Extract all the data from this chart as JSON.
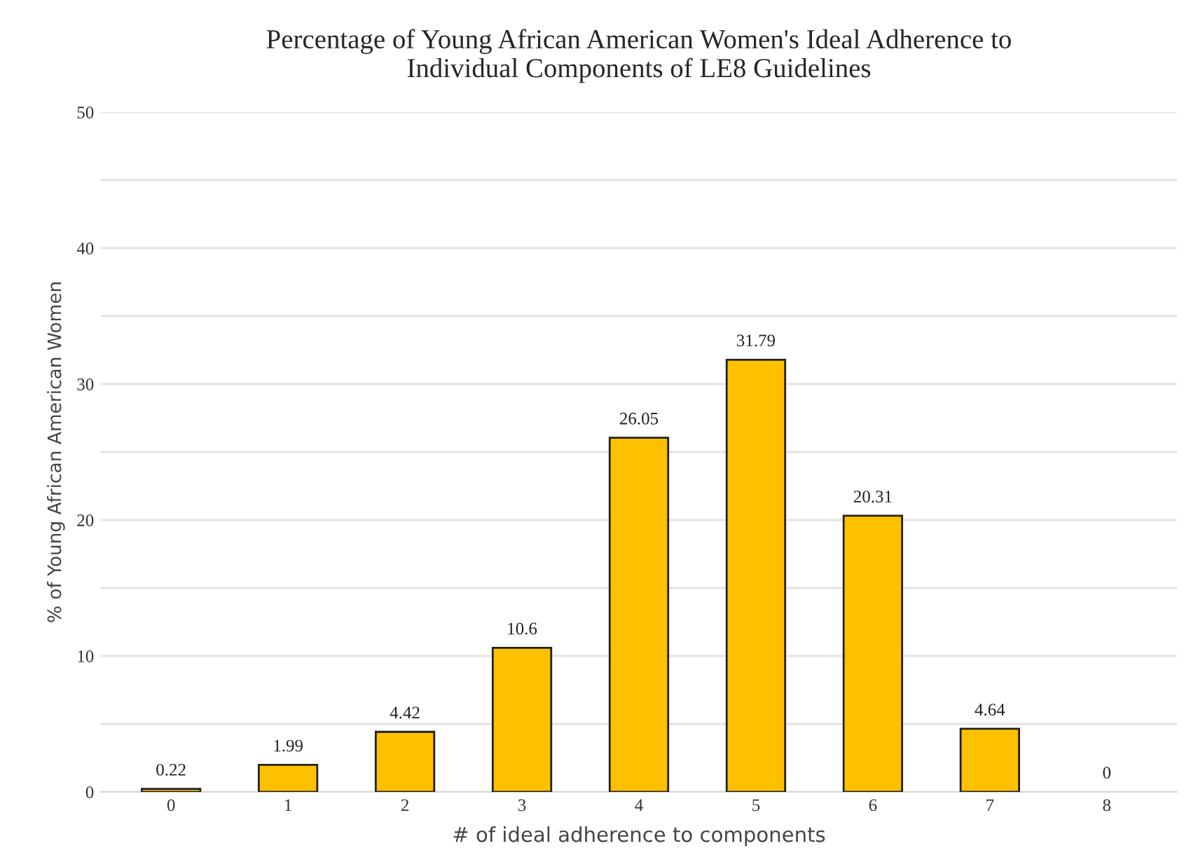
{
  "chart_data": {
    "type": "bar",
    "title": "Percentage of Young African American Women's Ideal Adherence to\nIndividual Components of LE8 Guidelines",
    "xlabel": "# of ideal adherence to components",
    "ylabel": "% of Young African American Women",
    "categories": [
      "0",
      "1",
      "2",
      "3",
      "4",
      "5",
      "6",
      "7",
      "8"
    ],
    "values": [
      0.22,
      1.99,
      4.42,
      10.6,
      26.05,
      31.79,
      20.31,
      4.64,
      0
    ],
    "color": "#ffc000",
    "data_labels": true,
    "grid": "y",
    "ylim": [
      0,
      50
    ],
    "yticks": [
      0,
      {
        "value": 5,
        "label": null
      },
      10,
      {
        "value": 15,
        "label": null
      },
      20,
      {
        "value": 25,
        "label": null
      },
      30,
      {
        "value": 35,
        "label": null
      },
      40,
      {
        "value": 45,
        "label": null
      },
      50
    ]
  }
}
